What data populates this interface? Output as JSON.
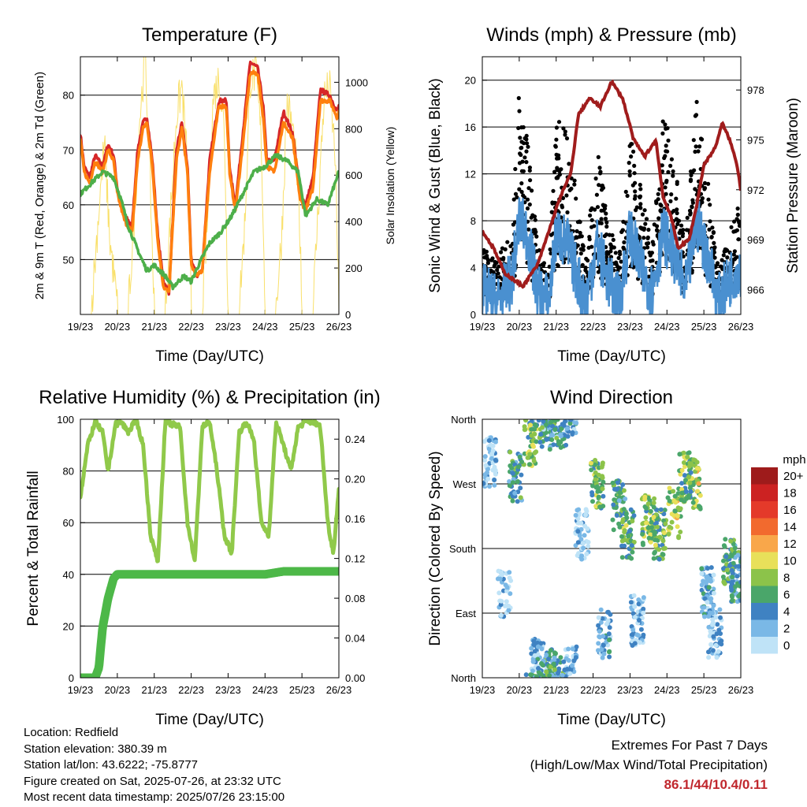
{
  "chart_data": [
    {
      "type": "line",
      "title": "Temperature (F)",
      "xlabel": "Time (Day/UTC)",
      "ylabel": "2m & 9m T (Red, Orange) & 2m Td (Green)",
      "ylabel_right": "Solar Insolation (Yellow)",
      "x_ticks": [
        "19/23",
        "20/23",
        "21/23",
        "22/23",
        "23/23",
        "24/23",
        "25/23",
        "26/23"
      ],
      "ylim": [
        40,
        87
      ],
      "y_ticks": [
        50,
        60,
        70,
        80
      ],
      "y2lim": [
        0,
        1110
      ],
      "y2_ticks": [
        0,
        200,
        400,
        600,
        800,
        1000
      ],
      "grid": "horizontal",
      "series": [
        {
          "color": "#d62728",
          "axis": "left",
          "x": [
            0,
            0.1,
            0.25,
            0.4,
            0.6,
            0.75,
            0.9,
            1.0,
            1.2,
            1.4,
            1.55,
            1.7,
            1.8,
            1.95,
            2.1,
            2.25,
            2.4,
            2.6,
            2.75,
            2.9,
            3.0,
            3.15,
            3.3,
            3.5,
            3.75,
            3.95,
            4.05,
            4.2,
            4.4,
            4.6,
            4.8,
            4.95,
            5.05,
            5.25,
            5.5,
            5.75,
            5.95,
            6.1,
            6.3,
            6.5,
            6.75,
            6.95,
            7.0
          ],
          "y": [
            73,
            67,
            65,
            69,
            67,
            71,
            69,
            63,
            58,
            56,
            70,
            75,
            76,
            68,
            54,
            46,
            44,
            70,
            75,
            67,
            50,
            47,
            48,
            68,
            79,
            79,
            66,
            60,
            73,
            86,
            85,
            78,
            68,
            68,
            77,
            73,
            62,
            60,
            65,
            81,
            80,
            77,
            78
          ]
        },
        {
          "color": "#ff7f0e",
          "axis": "left",
          "x": [
            0,
            0.1,
            0.25,
            0.4,
            0.6,
            0.75,
            0.9,
            1.0,
            1.2,
            1.4,
            1.55,
            1.7,
            1.8,
            1.95,
            2.1,
            2.25,
            2.4,
            2.6,
            2.75,
            2.9,
            3.0,
            3.15,
            3.3,
            3.5,
            3.75,
            3.95,
            4.05,
            4.2,
            4.4,
            4.6,
            4.8,
            4.95,
            5.05,
            5.25,
            5.5,
            5.75,
            5.95,
            6.1,
            6.3,
            6.5,
            6.75,
            6.95,
            7.0
          ],
          "y": [
            72,
            66,
            64,
            68,
            66,
            70,
            68,
            62,
            57,
            55,
            68,
            74,
            75,
            67,
            53,
            45,
            44,
            68,
            74,
            66,
            49,
            47,
            48,
            66,
            78,
            78,
            65,
            59,
            71,
            84,
            84,
            76,
            67,
            66,
            75,
            72,
            61,
            59,
            63,
            79,
            79,
            76,
            77
          ]
        },
        {
          "color": "#4daf4a",
          "axis": "left",
          "x": [
            0,
            0.3,
            0.6,
            0.9,
            1.1,
            1.3,
            1.6,
            1.8,
            2.0,
            2.3,
            2.5,
            2.8,
            3.0,
            3.2,
            3.5,
            3.8,
            4.1,
            4.4,
            4.7,
            5.0,
            5.3,
            5.6,
            5.9,
            6.1,
            6.4,
            6.7,
            6.9,
            7.0
          ],
          "y": [
            62,
            64,
            66,
            65,
            61,
            56,
            51,
            48,
            49,
            47,
            45,
            47,
            46,
            49,
            53,
            55,
            58,
            62,
            66,
            67,
            69,
            68,
            66,
            58,
            61,
            60,
            64,
            66
          ]
        },
        {
          "color": "#f9e06b",
          "axis": "right",
          "x": [
            0,
            0.3,
            0.4,
            0.55,
            0.65,
            0.8,
            1.0,
            1.3,
            1.45,
            1.6,
            1.75,
            1.85,
            2.0,
            2.3,
            2.45,
            2.6,
            2.75,
            2.9,
            3.0,
            3.3,
            3.45,
            3.6,
            3.75,
            3.9,
            4.0,
            4.3,
            4.45,
            4.6,
            4.75,
            4.9,
            5.0,
            5.3,
            5.45,
            5.6,
            5.75,
            5.9,
            6.0,
            6.3,
            6.45,
            6.6,
            6.75,
            6.9,
            7.0
          ],
          "y": [
            0,
            0,
            200,
            520,
            700,
            280,
            0,
            0,
            350,
            800,
            1060,
            720,
            0,
            0,
            420,
            820,
            950,
            600,
            0,
            0,
            380,
            900,
            980,
            760,
            0,
            0,
            350,
            980,
            1000,
            720,
            0,
            0,
            300,
            880,
            760,
            520,
            0,
            0,
            450,
            900,
            940,
            650,
            0
          ]
        }
      ]
    },
    {
      "type": "scatter",
      "title": "Winds (mph) & Pressure (mb)",
      "xlabel": "Time (Day/UTC)",
      "ylabel": "Sonic Wind & Gust (Blue, Black)",
      "ylabel_right": "Station Pressure (Maroon)",
      "x_ticks": [
        "19/23",
        "20/23",
        "21/23",
        "22/23",
        "23/23",
        "24/23",
        "25/23",
        "26/23"
      ],
      "ylim": [
        0,
        22
      ],
      "y_ticks": [
        0,
        4,
        8,
        12,
        16,
        20
      ],
      "y2lim": [
        964.5,
        980
      ],
      "y2_ticks": [
        966,
        969,
        972,
        975,
        978
      ],
      "grid": "horizontal",
      "series": [
        {
          "color": "#000000",
          "axis": "left",
          "kind": "points",
          "x": [
            0,
            0.4,
            0.8,
            1.0,
            1.2,
            1.5,
            1.8,
            2.0,
            2.3,
            2.5,
            2.8,
            3.1,
            3.4,
            3.7,
            4.0,
            4.3,
            4.6,
            4.9,
            5.2,
            5.5,
            5.8,
            6.1,
            6.4,
            6.7,
            6.9
          ],
          "y": [
            5,
            4,
            6,
            16,
            14,
            5,
            3,
            14,
            13,
            10,
            4,
            12,
            7,
            4,
            13,
            9,
            5,
            15,
            11,
            5,
            16,
            10,
            3,
            6,
            8
          ]
        },
        {
          "color": "#4a90d0",
          "axis": "left",
          "kind": "band",
          "x": [
            0,
            0.4,
            0.8,
            1.0,
            1.2,
            1.5,
            1.8,
            2.0,
            2.3,
            2.5,
            2.8,
            3.1,
            3.4,
            3.7,
            4.0,
            4.3,
            4.6,
            4.9,
            5.2,
            5.5,
            5.8,
            6.1,
            6.4,
            6.7,
            6.9
          ],
          "y": [
            2,
            1,
            3,
            8,
            7,
            2,
            1,
            7,
            6,
            4,
            1,
            6,
            3,
            1,
            7,
            4,
            2,
            7,
            5,
            2,
            8,
            5,
            1,
            3,
            4
          ]
        },
        {
          "color": "#a01c1c",
          "axis": "right",
          "kind": "line",
          "x": [
            0,
            0.3,
            0.6,
            0.9,
            1.1,
            1.5,
            1.8,
            2.1,
            2.4,
            2.6,
            2.9,
            3.2,
            3.5,
            3.8,
            4.1,
            4.4,
            4.7,
            4.9,
            5.1,
            5.3,
            5.6,
            5.8,
            6.0,
            6.3,
            6.5,
            6.7,
            6.9,
            7.0
          ],
          "y": [
            969.5,
            968.5,
            967.0,
            966.5,
            966.2,
            967.5,
            969.5,
            971.5,
            973.0,
            976.5,
            977.5,
            977.0,
            978.5,
            977.5,
            975.0,
            974.0,
            975.0,
            971.5,
            970.5,
            968.5,
            969.0,
            971.0,
            973.5,
            974.5,
            976.0,
            975.0,
            973.5,
            972.0
          ]
        }
      ]
    },
    {
      "type": "line",
      "title": "Relative Humidity (%) & Precipitation (in)",
      "xlabel": "Time (Day/UTC)",
      "ylabel": "Percent & Total Rainfall",
      "x_ticks": [
        "19/23",
        "20/23",
        "21/23",
        "22/23",
        "23/23",
        "24/23",
        "25/23",
        "26/23"
      ],
      "ylim": [
        0,
        100
      ],
      "y_ticks": [
        0,
        20,
        40,
        60,
        80,
        100
      ],
      "y2lim": [
        0,
        0.26
      ],
      "y2_ticks": [
        "0.00",
        "0.04",
        "0.08",
        "0.12",
        "0.16",
        "0.20",
        "0.24"
      ],
      "grid": "horizontal",
      "series": [
        {
          "color": "#90c94a",
          "axis": "left",
          "x": [
            0,
            0.2,
            0.4,
            0.6,
            0.75,
            0.95,
            1.1,
            1.3,
            1.5,
            1.7,
            1.9,
            2.1,
            2.3,
            2.5,
            2.7,
            2.9,
            3.1,
            3.3,
            3.5,
            3.7,
            3.9,
            4.1,
            4.3,
            4.5,
            4.7,
            4.9,
            5.1,
            5.3,
            5.5,
            5.7,
            5.9,
            6.1,
            6.3,
            6.5,
            6.7,
            6.85,
            7.0
          ],
          "y": [
            70,
            90,
            99,
            95,
            80,
            98,
            99,
            95,
            100,
            90,
            55,
            45,
            99,
            98,
            97,
            60,
            45,
            97,
            99,
            80,
            55,
            48,
            95,
            99,
            92,
            60,
            55,
            99,
            90,
            80,
            97,
            99,
            99,
            97,
            60,
            48,
            73
          ]
        },
        {
          "color": "#4db848",
          "axis": "right",
          "kind": "thick",
          "x": [
            0,
            0.4,
            0.5,
            0.55,
            0.6,
            0.7,
            0.75,
            0.9,
            1.0,
            3.0,
            5.0,
            5.5,
            6.0,
            7.0
          ],
          "y": [
            0,
            0,
            0.01,
            0.03,
            0.05,
            0.07,
            0.08,
            0.1,
            0.104,
            0.104,
            0.104,
            0.107,
            0.107,
            0.107
          ]
        }
      ]
    },
    {
      "type": "scatter",
      "title": "Wind Direction",
      "xlabel": "Time (Day/UTC)",
      "ylabel": "Direction (Colored By Speed)",
      "x_ticks": [
        "19/23",
        "20/23",
        "21/23",
        "22/23",
        "23/23",
        "24/23",
        "25/23",
        "26/23"
      ],
      "y_ticks": [
        "North",
        "East",
        "South",
        "West",
        "North"
      ],
      "grid": "horizontal",
      "legend_title": "mph",
      "legend": [
        {
          "label": "20+",
          "color": "#9e1b1b"
        },
        {
          "label": "18",
          "color": "#cc2222"
        },
        {
          "label": "16",
          "color": "#e43a2a"
        },
        {
          "label": "14",
          "color": "#f26a2e"
        },
        {
          "label": "12",
          "color": "#f9a74a"
        },
        {
          "label": "10",
          "color": "#e8e05a"
        },
        {
          "label": "8",
          "color": "#8cc34a"
        },
        {
          "label": "6",
          "color": "#4aa66a"
        },
        {
          "label": "4",
          "color": "#3f82c2"
        },
        {
          "label": "2",
          "color": "#7ab8e6"
        },
        {
          "label": "0",
          "color": "#bfe3f7"
        }
      ],
      "series": [
        {
          "axis": "left",
          "kind": "clusters",
          "x": [
            0.2,
            0.6,
            0.9,
            1.3,
            1.5,
            1.7,
            1.85,
            2.1,
            2.4,
            2.7,
            3.1,
            3.3,
            3.7,
            3.95,
            4.2,
            4.5,
            4.8,
            5.2,
            5.5,
            5.75,
            6.1,
            6.3,
            6.7,
            6.9
          ],
          "y": [
            300,
            120,
            280,
            330,
            20,
            350,
            5,
            355,
            10,
            200,
            270,
            60,
            240,
            200,
            80,
            220,
            200,
            230,
            280,
            270,
            120,
            60,
            160,
            140
          ],
          "speed": [
            2,
            1,
            6,
            8,
            3,
            6,
            4,
            5,
            3,
            2,
            8,
            4,
            6,
            7,
            3,
            8,
            7,
            9,
            8,
            9,
            3,
            2,
            6,
            5
          ]
        }
      ]
    }
  ],
  "info": {
    "location": "Location: Redfield",
    "elevation": "Station elevation: 380.39 m",
    "latlon": "Station lat/lon: 43.6222; -75.8777",
    "created": "Figure created on Sat, 2025-07-26, at 23:32 UTC",
    "recent": "Most recent data timestamp: 2025/07/26 23:15:00"
  },
  "extremes": {
    "title": "Extremes For Past 7 Days",
    "subtitle": "(High/Low/Max Wind/Total Precipitation)",
    "values": "86.1/44/10.4/0.11"
  }
}
